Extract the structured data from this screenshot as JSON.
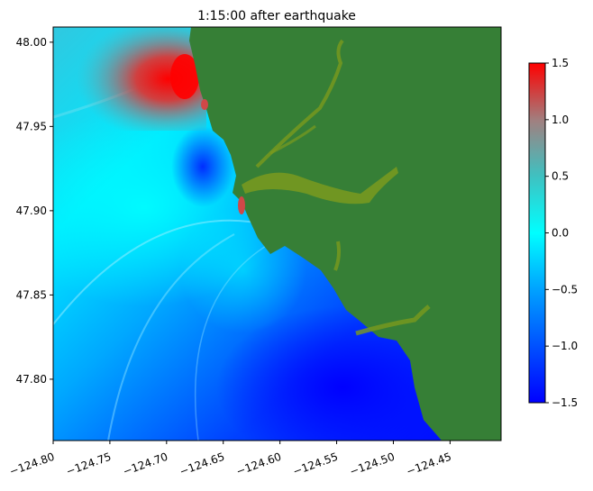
{
  "chart_data": {
    "type": "heatmap",
    "title": "1:15:00 after earthquake",
    "xlabel": "",
    "ylabel": "",
    "xlim": [
      -124.8,
      -124.405
    ],
    "ylim": [
      47.7636,
      48.009
    ],
    "xticks": [
      -124.8,
      -124.75,
      -124.7,
      -124.65,
      -124.6,
      -124.55,
      -124.5,
      -124.45
    ],
    "xtick_labels": [
      "−124.80",
      "−124.75",
      "−124.70",
      "−124.65",
      "−124.60",
      "−124.55",
      "−124.50",
      "−124.45"
    ],
    "yticks": [
      48.0,
      47.95,
      47.9,
      47.85,
      47.8
    ],
    "ytick_labels": [
      "48.00",
      "47.95",
      "47.90",
      "47.85",
      "47.80"
    ],
    "colorbar": {
      "range": [
        -1.5,
        1.5
      ],
      "ticks": [
        1.5,
        1.0,
        0.5,
        0.0,
        -0.5,
        -1.0,
        -1.5
      ],
      "tick_labels": [
        "1.5",
        "1.0",
        "0.5",
        "0.0",
        "−0.5",
        "−1.0",
        "−1.5"
      ],
      "colors": [
        "#0000ff",
        "#00a0ff",
        "#00ffff",
        "#40c0c0",
        "#a08080",
        "#ff0000"
      ]
    },
    "land_color": "#367f36",
    "wet_land_color": "#7a9a1e",
    "grid": false
  }
}
